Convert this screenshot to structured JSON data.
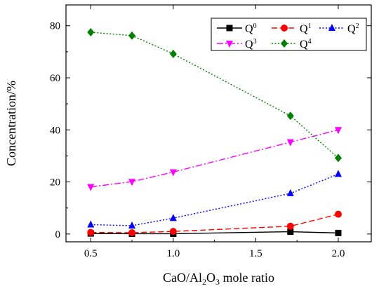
{
  "chart_data": {
    "type": "line",
    "xlabel": "CaO/Al2O3 mole ratio",
    "ylabel": "Concentration/%",
    "xlim": [
      0.35,
      2.2
    ],
    "ylim": [
      -3,
      88
    ],
    "xticks": [
      "0.5",
      "1.0",
      "1.5",
      "2.0"
    ],
    "yticks": [
      "0",
      "20",
      "40",
      "60",
      "80"
    ],
    "x": [
      0.5,
      0.75,
      1.0,
      1.71,
      2.0
    ],
    "grid": false,
    "legend_position": "top-right",
    "series": [
      {
        "name": "Q0",
        "color": "#000000",
        "marker": "square",
        "dash": "solid",
        "values": [
          0.2,
          0.1,
          0.1,
          0.9,
          0.4
        ]
      },
      {
        "name": "Q1",
        "color": "#ff0000",
        "marker": "circle",
        "dash": "dashed",
        "values": [
          0.6,
          0.5,
          1.0,
          3.0,
          7.6
        ]
      },
      {
        "name": "Q2",
        "color": "#0000ff",
        "marker": "triangle-up",
        "dash": "dotted",
        "values": [
          3.6,
          3.2,
          6.1,
          15.6,
          23.0
        ]
      },
      {
        "name": "Q3",
        "color": "#ff00ff",
        "marker": "triangle-down",
        "dash": "dashdot",
        "values": [
          18.1,
          20.1,
          23.8,
          35.3,
          40.0
        ]
      },
      {
        "name": "Q4",
        "color": "#008000",
        "marker": "diamond",
        "dash": "dotted",
        "values": [
          77.5,
          76.2,
          69.2,
          45.4,
          29.2
        ]
      }
    ]
  }
}
